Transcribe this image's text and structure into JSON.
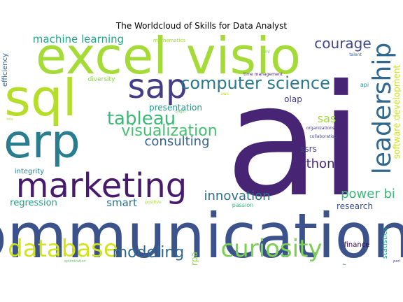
{
  "chart_data": {
    "type": "wordcloud",
    "title": "The Worldcloud of Skills for Data Analyst",
    "colormap": "viridis",
    "words": [
      {
        "text": "ai",
        "size": 220,
        "color": "#482474"
      },
      {
        "text": "communication",
        "size": 88,
        "color": "#3b528b"
      },
      {
        "text": "excel",
        "size": 72,
        "color": "#a5db36"
      },
      {
        "text": "visio",
        "size": 72,
        "color": "#a5db36"
      },
      {
        "text": "sql",
        "size": 72,
        "color": "#b5de2b"
      },
      {
        "text": "erp",
        "size": 66,
        "color": "#287d8e"
      },
      {
        "text": "marketing",
        "size": 48,
        "color": "#481a6c"
      },
      {
        "text": "sap",
        "size": 48,
        "color": "#433e85"
      },
      {
        "text": "leadership",
        "size": 36,
        "color": "#31688e"
      },
      {
        "text": "database",
        "size": 34,
        "color": "#d2e21b"
      },
      {
        "text": "curiosity",
        "size": 34,
        "color": "#7ad151"
      },
      {
        "text": "tableau",
        "size": 26,
        "color": "#3aba76"
      },
      {
        "text": "computer science",
        "size": 24,
        "color": "#2a788e"
      },
      {
        "text": "visualization",
        "size": 22,
        "color": "#44bf70"
      },
      {
        "text": "modeling",
        "size": 22,
        "color": "#31688e"
      },
      {
        "text": "courage",
        "size": 20,
        "color": "#3e4989"
      },
      {
        "text": "consulting",
        "size": 18,
        "color": "#35608d"
      },
      {
        "text": "python",
        "size": 18,
        "color": "#482878"
      },
      {
        "text": "innovation",
        "size": 18,
        "color": "#2e6f8e"
      },
      {
        "text": "power bi",
        "size": 18,
        "color": "#3aba76"
      },
      {
        "text": "sas",
        "size": 16,
        "color": "#a2da37"
      },
      {
        "text": "machine learning",
        "size": 15,
        "color": "#22a884"
      },
      {
        "text": "smart",
        "size": 15,
        "color": "#2c738e"
      },
      {
        "text": "regression",
        "size": 13,
        "color": "#1fa088"
      },
      {
        "text": "software development",
        "size": 12,
        "color": "#c7e020"
      },
      {
        "text": "presentation",
        "size": 12,
        "color": "#1f968b"
      },
      {
        "text": "ssrs",
        "size": 12,
        "color": "#3e4989"
      },
      {
        "text": "olap",
        "size": 12,
        "color": "#443a83"
      },
      {
        "text": "research",
        "size": 12,
        "color": "#3b528b"
      },
      {
        "text": "rpa",
        "size": 12,
        "color": "#8fd744"
      },
      {
        "text": "efficiency",
        "size": 10,
        "color": "#33638d"
      },
      {
        "text": "integrity",
        "size": 10,
        "color": "#25858e"
      },
      {
        "text": "statistics",
        "size": 10,
        "color": "#1f9e89"
      },
      {
        "text": "finance",
        "size": 10,
        "color": "#440154"
      },
      {
        "text": "diversity",
        "size": 9,
        "color": "#86d549"
      },
      {
        "text": "api",
        "size": 8,
        "color": "#228d8d"
      },
      {
        "text": "passion",
        "size": 8,
        "color": "#35b779"
      },
      {
        "text": "mathematics",
        "size": 7,
        "color": "#a0da39"
      },
      {
        "text": "time management",
        "size": 6,
        "color": "#482475"
      },
      {
        "text": "organizations",
        "size": 6,
        "color": "#453581"
      },
      {
        "text": "collaboration",
        "size": 6,
        "color": "#3f4788"
      },
      {
        "text": "ml",
        "size": 6,
        "color": "#6ccd5a"
      },
      {
        "text": "talent",
        "size": 6,
        "color": "#32648e"
      },
      {
        "text": "aws",
        "size": 6,
        "color": "#c2df23"
      },
      {
        "text": "positive",
        "size": 6,
        "color": "#addc30"
      },
      {
        "text": "optimization",
        "size": 5,
        "color": "#63cb5f"
      },
      {
        "text": "bright",
        "size": 5,
        "color": "#54c568"
      },
      {
        "text": "ssis",
        "size": 5,
        "color": "#addc30"
      },
      {
        "text": "perl",
        "size": 5,
        "color": "#404688"
      },
      {
        "text": "r",
        "size": 6,
        "color": "#2d718e"
      }
    ]
  }
}
